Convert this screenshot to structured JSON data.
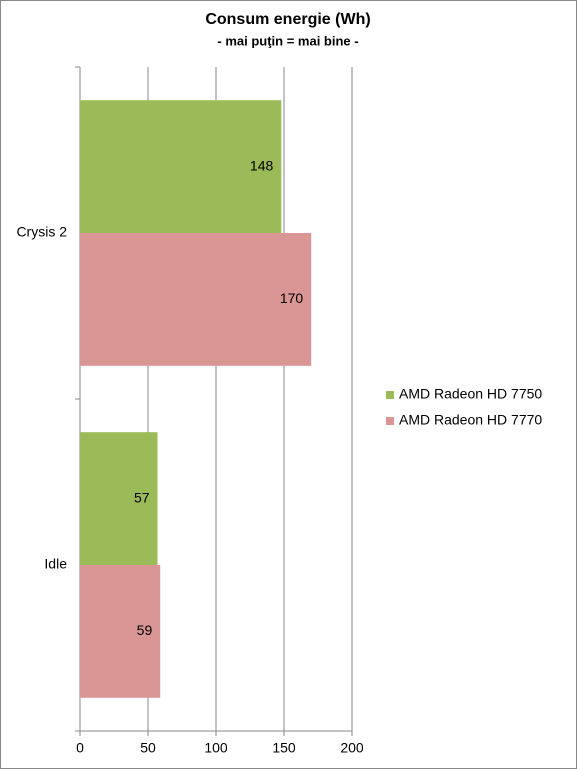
{
  "chart_data": {
    "type": "bar",
    "orientation": "horizontal",
    "title": "Consum energie (Wh)",
    "subtitle": "- mai puţin = mai bine -",
    "categories": [
      "Crysis 2",
      "Idle"
    ],
    "series": [
      {
        "name": "AMD Radeon HD 7750",
        "color": "#9bbb59",
        "values": [
          148,
          57
        ]
      },
      {
        "name": "AMD Radeon HD 7770",
        "color": "#d99694",
        "values": [
          170,
          59
        ]
      }
    ],
    "xlim": [
      0,
      200
    ],
    "xticks": [
      0,
      50,
      100,
      150,
      200
    ],
    "grid": true,
    "legend": "right"
  }
}
